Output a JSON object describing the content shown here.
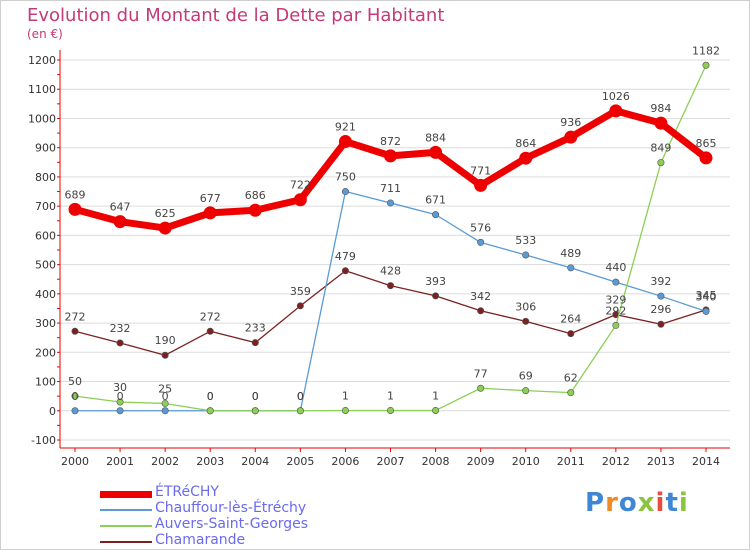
{
  "title": "Evolution du Montant de la Dette par Habitant",
  "subtitle": "(en €)",
  "brand": {
    "text": "Proxiti",
    "letter_colors": [
      "#3f86d6",
      "#f08a24",
      "#3f86d6",
      "#8bc43f",
      "#e84c3d",
      "#3f86d6",
      "#8bc43f"
    ]
  },
  "chart_data": {
    "type": "line",
    "title": "Evolution du Montant de la Dette par Habitant",
    "subtitle": "(en €)",
    "x": [
      2000,
      2001,
      2002,
      2003,
      2004,
      2005,
      2006,
      2007,
      2008,
      2009,
      2010,
      2011,
      2012,
      2013,
      2014
    ],
    "ylim": [
      -100,
      1200
    ],
    "yticks": [
      -100,
      0,
      100,
      200,
      300,
      400,
      500,
      600,
      700,
      800,
      900,
      1000,
      1100,
      1200
    ],
    "grid": "horizontal",
    "legend_position": "bottom-left",
    "series": [
      {
        "name": "ÉTRéCHY",
        "color": "#ee0000",
        "emphasis": true,
        "values": [
          689,
          647,
          625,
          677,
          686,
          722,
          921,
          872,
          884,
          771,
          864,
          936,
          1026,
          984,
          865
        ]
      },
      {
        "name": "Chauffour-lès-Étréchy",
        "color": "#5b9bd5",
        "values": [
          0,
          0,
          0,
          0,
          0,
          0,
          750,
          711,
          671,
          576,
          533,
          489,
          440,
          392,
          340
        ]
      },
      {
        "name": "Auvers-Saint-Georges",
        "color": "#8ccf55",
        "values": [
          50,
          30,
          25,
          0,
          0,
          0,
          1,
          1,
          1,
          77,
          69,
          62,
          292,
          849,
          1182
        ]
      },
      {
        "name": "Chamarande",
        "color": "#7a2222",
        "values": [
          272,
          232,
          190,
          272,
          233,
          359,
          479,
          428,
          393,
          342,
          306,
          264,
          329,
          296,
          345
        ]
      }
    ]
  }
}
